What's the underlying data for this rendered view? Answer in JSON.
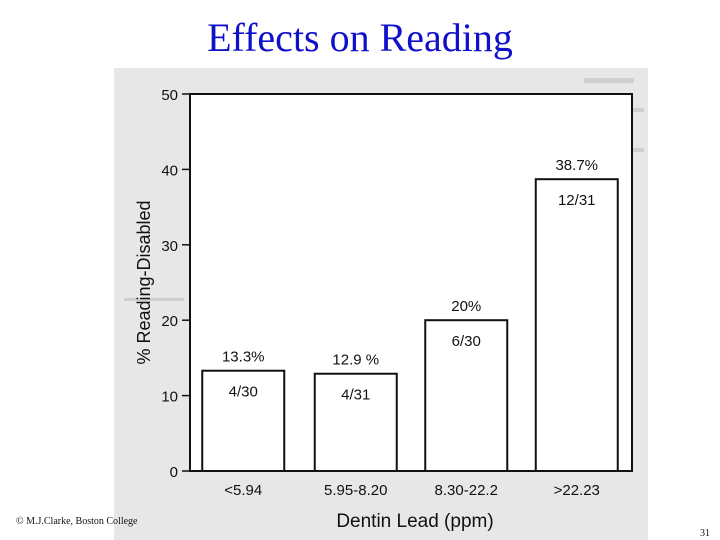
{
  "slide": {
    "title": "Effects on Reading",
    "footer": "© M.J.Clarke, Boston College",
    "page_number": "31"
  },
  "colors": {
    "title": "#1010c8",
    "scan_background": "#e7e7e7",
    "bar_fill": "#ffffff",
    "ink": "#111111"
  },
  "chart_data": {
    "type": "bar",
    "title": "",
    "xlabel": "Dentin Lead (ppm)",
    "ylabel": "% Reading-Disabled",
    "ylim": [
      0,
      50
    ],
    "yticks": [
      0,
      10,
      20,
      30,
      40,
      50
    ],
    "grid": false,
    "categories": [
      "<5.94",
      "5.95-8.20",
      "8.30-22.2",
      ">22.23"
    ],
    "values": [
      13.3,
      12.9,
      20,
      38.7
    ],
    "value_labels": [
      "13.3%",
      "12.9 %",
      "20%",
      "38.7%"
    ],
    "count_labels": [
      "4/30",
      "4/31",
      "6/30",
      "12/31"
    ]
  }
}
